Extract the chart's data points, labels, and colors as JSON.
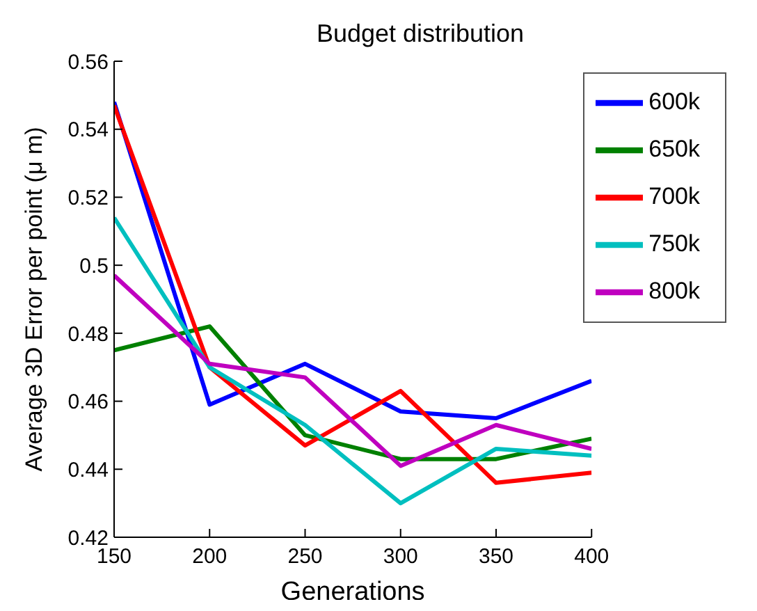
{
  "chart_data": {
    "type": "line",
    "title": "Budget distribution",
    "xlabel": "Generations",
    "ylabel": "Average 3D Error per point (μ m)",
    "x": [
      150,
      200,
      250,
      300,
      350,
      400
    ],
    "series": [
      {
        "name": "600k",
        "color": "#0000ff",
        "values": [
          0.548,
          0.459,
          0.471,
          0.457,
          0.455,
          0.466
        ]
      },
      {
        "name": "650k",
        "color": "#008000",
        "values": [
          0.475,
          0.482,
          0.45,
          0.443,
          0.443,
          0.449
        ]
      },
      {
        "name": "700k",
        "color": "#ff0000",
        "values": [
          0.547,
          0.47,
          0.447,
          0.463,
          0.436,
          0.439
        ]
      },
      {
        "name": "750k",
        "color": "#00bfbf",
        "values": [
          0.514,
          0.47,
          0.453,
          0.43,
          0.446,
          0.444
        ]
      },
      {
        "name": "800k",
        "color": "#bf00bf",
        "values": [
          0.497,
          0.471,
          0.467,
          0.441,
          0.453,
          0.446
        ]
      }
    ],
    "xlim": [
      150,
      400
    ],
    "xticks": [
      150,
      200,
      250,
      300,
      350,
      400
    ],
    "ylim": [
      0.42,
      0.56
    ],
    "yticks": [
      0.42,
      0.44,
      0.46,
      0.48,
      0.5,
      0.52,
      0.54,
      0.56
    ],
    "grid": false,
    "legend": "top right",
    "marker": "none",
    "line_style": "solid"
  }
}
